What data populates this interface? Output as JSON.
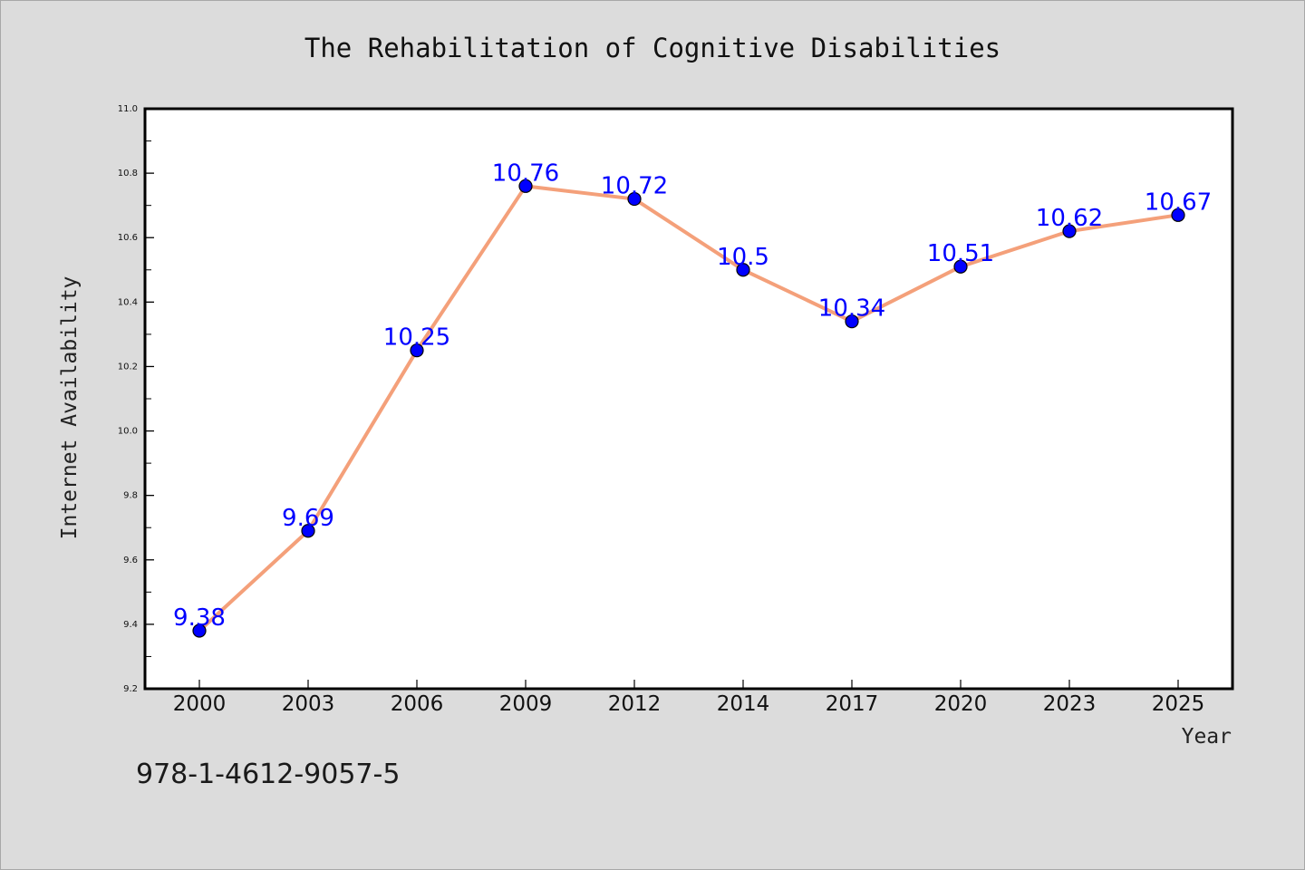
{
  "chart_data": {
    "type": "line",
    "title": "The Rehabilitation of Cognitive Disabilities",
    "xlabel": "Year",
    "ylabel": "Internet Availability",
    "categories": [
      "2000",
      "2003",
      "2006",
      "2009",
      "2012",
      "2014",
      "2017",
      "2020",
      "2023",
      "2025"
    ],
    "series": [
      {
        "values": [
          9.38,
          9.69,
          10.25,
          10.76,
          10.72,
          10.5,
          10.34,
          10.51,
          10.62,
          10.67
        ],
        "labels": [
          "9.38",
          "9.69",
          "10.25",
          "10.76",
          "10.72",
          "10.5",
          "10.34",
          "10.51",
          "10.62",
          "10.67"
        ],
        "line_color": "#f4a07a",
        "marker_color": "#0000ff"
      }
    ],
    "ylim": [
      9.2,
      11.0
    ],
    "yticks": [
      "9.2",
      "9.4",
      "9.6",
      "9.8",
      "10.0",
      "10.2",
      "10.4",
      "10.6",
      "10.8",
      "11.0"
    ],
    "grid": false,
    "legend": "none"
  },
  "footer": {
    "isbn": "978-1-4612-9057-5"
  },
  "colors": {
    "background": "#dcdcdc",
    "plot_background": "#ffffff",
    "line": "#f4a07a",
    "marker": "#0000ff",
    "data_label": "#0000ff"
  }
}
